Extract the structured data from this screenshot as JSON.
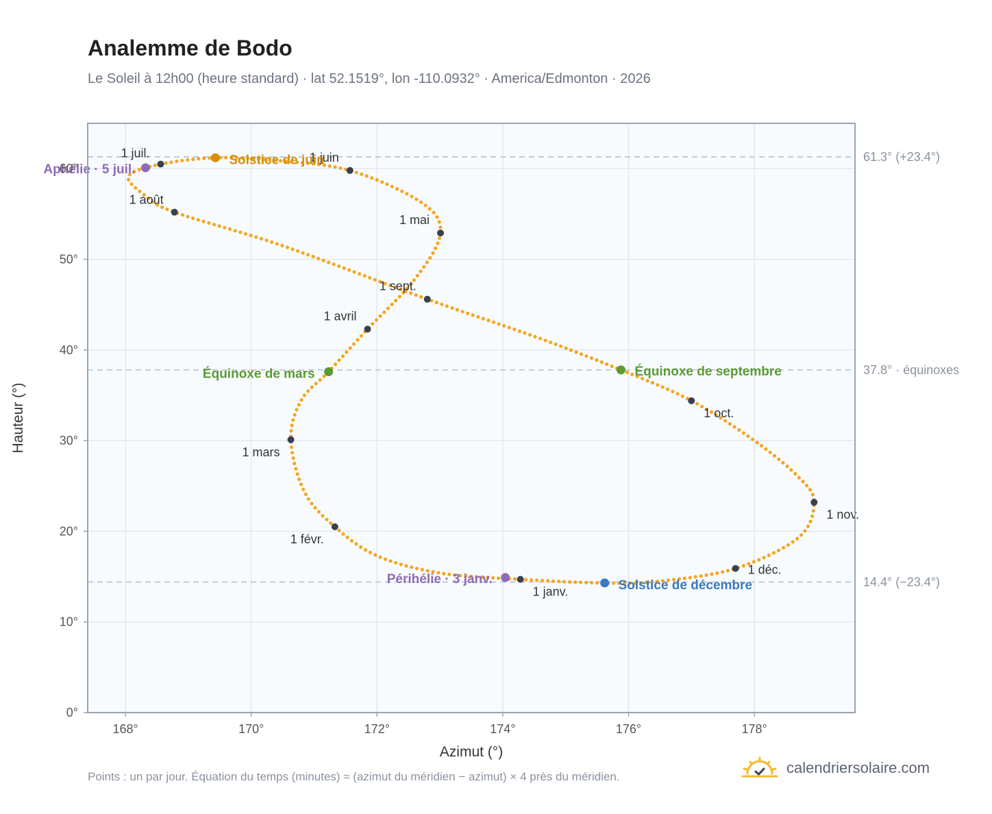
{
  "title": "Analemme de Bodo",
  "subtitle": "Le Soleil à 12h00 (heure standard) · lat 52.1519°, lon -110.0932° · America/Edmonton · 2026",
  "footnote": "Points : un par jour. Équation du temps (minutes) ≈ (azimut du méridien − azimut) × 4 près du méridien.",
  "brand": {
    "name": "calendriersolaire.com",
    "icon": "sun-check-icon"
  },
  "colors": {
    "curve": "#f5a623",
    "month_dot": "#374151",
    "june_solstice": "#d4910f",
    "december_solstice": "#3a78c2",
    "equinox": "#5b9a34",
    "apsis": "#8e6bb8",
    "plot_bg": "#f8fbfe",
    "grid": "#e3e8ee",
    "ref_line": "#b8c0cb",
    "frame": "#9aa3b0"
  },
  "chart_data": {
    "type": "scatter",
    "xlabel": "Azimut (°)",
    "ylabel": "Hauteur (°)",
    "xlim": [
      167.4,
      179.6
    ],
    "ylim": [
      0,
      65
    ],
    "x_ticks": [
      168,
      170,
      172,
      174,
      176,
      178
    ],
    "x_tick_labels": [
      "168°",
      "170°",
      "172°",
      "174°",
      "176°",
      "178°"
    ],
    "y_ticks": [
      0,
      10,
      20,
      30,
      40,
      50,
      60
    ],
    "y_tick_labels": [
      "0°",
      "10°",
      "20°",
      "30°",
      "40°",
      "50°",
      "60°"
    ],
    "grid": true,
    "reference_lines": [
      {
        "y": 61.3,
        "label": "61.3° (+23.4°)"
      },
      {
        "y": 37.8,
        "label": "37.8° · équinoxes"
      },
      {
        "y": 14.4,
        "label": "14.4° (−23.4°)"
      }
    ],
    "months": [
      {
        "label": "1 janv.",
        "az": 174.28,
        "alt": 14.7
      },
      {
        "label": "1 févr.",
        "az": 171.33,
        "alt": 20.5
      },
      {
        "label": "1 mars",
        "az": 170.63,
        "alt": 30.1
      },
      {
        "label": "1 avril",
        "az": 171.85,
        "alt": 42.3
      },
      {
        "label": "1 mai",
        "az": 173.01,
        "alt": 52.9
      },
      {
        "label": "1 juin",
        "az": 171.57,
        "alt": 59.8
      },
      {
        "label": "1 juil.",
        "az": 168.56,
        "alt": 60.5
      },
      {
        "label": "1 août",
        "az": 168.78,
        "alt": 55.2
      },
      {
        "label": "1 sept.",
        "az": 172.8,
        "alt": 45.6
      },
      {
        "label": "1 oct.",
        "az": 177.0,
        "alt": 34.4
      },
      {
        "label": "1 nov.",
        "az": 178.95,
        "alt": 23.2
      },
      {
        "label": "1 déc.",
        "az": 177.7,
        "alt": 15.9
      }
    ],
    "events": [
      {
        "label": "Solstice de juin",
        "az": 169.43,
        "alt": 61.2,
        "kind": "june_solstice"
      },
      {
        "label": "Aphélie · 5 juil.",
        "az": 168.32,
        "alt": 60.1,
        "kind": "apsis"
      },
      {
        "label": "Équinoxe de mars",
        "az": 171.23,
        "alt": 37.6,
        "kind": "equinox"
      },
      {
        "label": "Équinoxe de septembre",
        "az": 175.88,
        "alt": 37.8,
        "kind": "equinox"
      },
      {
        "label": "Périhélie · 3 janv.",
        "az": 174.04,
        "alt": 14.9,
        "kind": "apsis"
      },
      {
        "label": "Solstice de décembre",
        "az": 175.62,
        "alt": 14.3,
        "kind": "december_solstice"
      }
    ],
    "path_anchors": [
      [
        174.28,
        14.7
      ],
      [
        173.0,
        15.4
      ],
      [
        172.0,
        17.3
      ],
      [
        171.33,
        20.5
      ],
      [
        170.85,
        24.3
      ],
      [
        170.63,
        30.1
      ],
      [
        170.8,
        34.5
      ],
      [
        171.23,
        37.6
      ],
      [
        171.85,
        42.3
      ],
      [
        172.6,
        47.8
      ],
      [
        173.01,
        52.9
      ],
      [
        172.7,
        56.3
      ],
      [
        171.57,
        59.8
      ],
      [
        170.4,
        60.9
      ],
      [
        169.43,
        61.2
      ],
      [
        168.56,
        60.5
      ],
      [
        168.05,
        59.2
      ],
      [
        168.3,
        57.1
      ],
      [
        168.78,
        55.2
      ],
      [
        170.5,
        51.5
      ],
      [
        172.8,
        45.6
      ],
      [
        174.5,
        41.5
      ],
      [
        175.88,
        37.8
      ],
      [
        177.0,
        34.4
      ],
      [
        178.0,
        30.0
      ],
      [
        178.7,
        26.0
      ],
      [
        178.95,
        23.2
      ],
      [
        178.7,
        19.3
      ],
      [
        177.7,
        15.9
      ],
      [
        176.5,
        14.5
      ],
      [
        175.62,
        14.3
      ],
      [
        174.28,
        14.7
      ]
    ]
  }
}
